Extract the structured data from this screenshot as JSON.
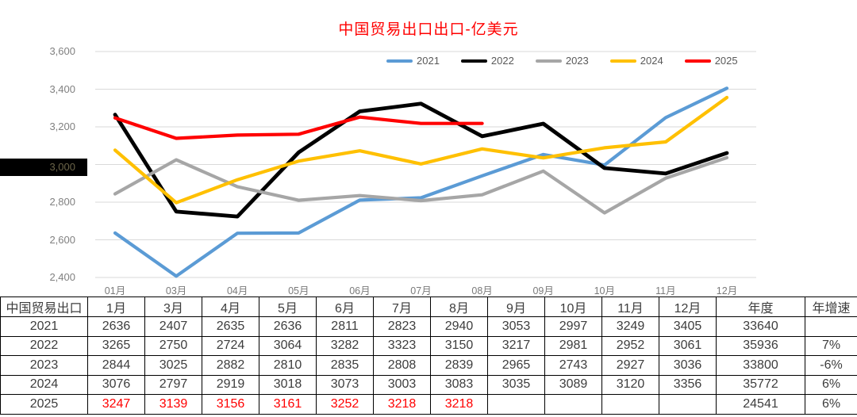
{
  "chart": {
    "title": "中国贸易出口出口-亿美元"
  },
  "chart_data": {
    "type": "line",
    "title": "中国贸易出口出口-亿美元",
    "unit": "亿美元",
    "x_labels": [
      "01月",
      "03月",
      "04月",
      "05月",
      "06月",
      "07月",
      "08月",
      "09月",
      "10月",
      "11月",
      "12月"
    ],
    "y_tick_labels": [
      "3,600",
      "3,400",
      "3,200",
      "3,000",
      "2,800",
      "2,600",
      "2,400"
    ],
    "y_tick_values": [
      3600,
      3400,
      3200,
      3000,
      2800,
      2600,
      2400
    ],
    "ylim": [
      2400,
      3600
    ],
    "grid": true,
    "legend_position": "top",
    "highlighted_y_tick": {
      "label": "3,000",
      "box_color": "#000000",
      "text_color": "#6C6549"
    },
    "series": [
      {
        "name": "2021",
        "color": "#5B9BD5",
        "values": [
          2636,
          2407,
          2635,
          2636,
          2811,
          2823,
          2940,
          3053,
          2997,
          3249,
          3405
        ]
      },
      {
        "name": "2022",
        "color": "#000000",
        "values": [
          3265,
          2750,
          2724,
          3064,
          3282,
          3323,
          3150,
          3217,
          2981,
          2952,
          3061
        ]
      },
      {
        "name": "2023",
        "color": "#A6A6A6",
        "values": [
          2844,
          3025,
          2882,
          2810,
          2835,
          2808,
          2839,
          2965,
          2743,
          2927,
          3036
        ]
      },
      {
        "name": "2024",
        "color": "#FFC000",
        "values": [
          3076,
          2797,
          2919,
          3018,
          3073,
          3003,
          3083,
          3035,
          3089,
          3120,
          3356
        ]
      },
      {
        "name": "2025",
        "color": "#FF0000",
        "values": [
          3247,
          3139,
          3156,
          3161,
          3252,
          3218,
          3218
        ]
      }
    ]
  },
  "table": {
    "title_cell": "中国贸易出口",
    "month_headers": [
      "1月",
      "3月",
      "4月",
      "5月",
      "6月",
      "7月",
      "8月",
      "9月",
      "10月",
      "11月",
      "12月"
    ],
    "annual_header": "年度",
    "growth_header": "年增速",
    "rows": [
      {
        "year": "2021",
        "values": [
          "2636",
          "2407",
          "2635",
          "2636",
          "2811",
          "2823",
          "2940",
          "3053",
          "2997",
          "3249",
          "3405"
        ],
        "annual": "33640",
        "growth": "",
        "red": false
      },
      {
        "year": "2022",
        "values": [
          "3265",
          "2750",
          "2724",
          "3064",
          "3282",
          "3323",
          "3150",
          "3217",
          "2981",
          "2952",
          "3061"
        ],
        "annual": "35936",
        "growth": "7%",
        "red": false
      },
      {
        "year": "2023",
        "values": [
          "2844",
          "3025",
          "2882",
          "2810",
          "2835",
          "2808",
          "2839",
          "2965",
          "2743",
          "2927",
          "3036"
        ],
        "annual": "33800",
        "growth": "-6%",
        "red": false
      },
      {
        "year": "2024",
        "values": [
          "3076",
          "2797",
          "2919",
          "3018",
          "3073",
          "3003",
          "3083",
          "3035",
          "3089",
          "3120",
          "3356"
        ],
        "annual": "35772",
        "growth": "6%",
        "red": false
      },
      {
        "year": "2025",
        "values": [
          "3247",
          "3139",
          "3156",
          "3161",
          "3252",
          "3218",
          "3218",
          "",
          "",
          "",
          ""
        ],
        "annual": "24541",
        "growth": "6%",
        "red": true
      }
    ]
  },
  "colors": {
    "title": "#FF0000",
    "gridline": "#D9D9D9",
    "axis_text": "#808080",
    "red_value": "#FF0000"
  }
}
